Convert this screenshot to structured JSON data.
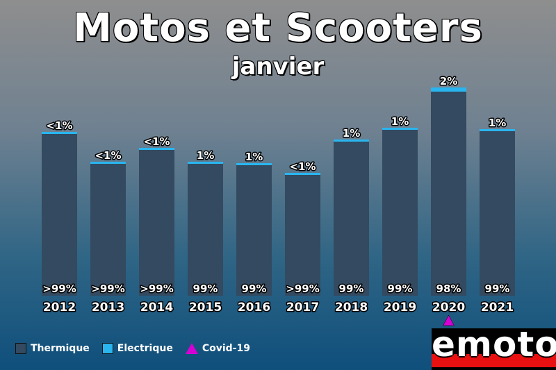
{
  "title": "Motos et Scooters",
  "subtitle": "janvier",
  "colors": {
    "thermique": "#334a60",
    "electrique": "#29b6f0",
    "covid": "#d400d4"
  },
  "chart_data": {
    "type": "bar",
    "stacked": true,
    "categories": [
      "2012",
      "2013",
      "2014",
      "2015",
      "2016",
      "2017",
      "2018",
      "2019",
      "2020",
      "2021"
    ],
    "series": [
      {
        "name": "Thermique",
        "values": [
          99.5,
          99.5,
          99.5,
          99,
          99,
          99.5,
          99,
          99,
          98,
          99
        ],
        "labels": [
          ">99%",
          ">99%",
          ">99%",
          "99%",
          "99%",
          ">99%",
          "99%",
          "99%",
          "98%",
          "99%"
        ]
      },
      {
        "name": "Electrique",
        "values": [
          0.5,
          0.5,
          0.5,
          1,
          1,
          0.5,
          1,
          1,
          2,
          1
        ],
        "labels": [
          "<1%",
          "<1%",
          "<1%",
          "1%",
          "1%",
          "<1%",
          "1%",
          "1%",
          "2%",
          "1%"
        ]
      }
    ],
    "relative_totals": [
      236,
      193,
      213,
      193,
      191,
      177,
      225,
      242,
      300,
      240
    ],
    "marker": {
      "category": "2020",
      "label": "Covid-19"
    },
    "legend": [
      "Thermique",
      "Electrique",
      "Covid-19"
    ],
    "legend_position": "bottom-left",
    "grid": false
  },
  "logo_text": "emoto"
}
